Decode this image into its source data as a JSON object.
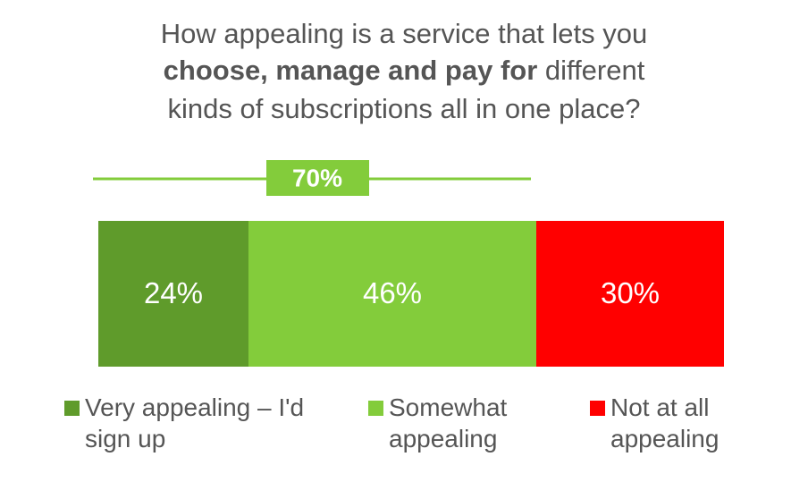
{
  "chart_data": {
    "type": "stacked_bar_horizontal",
    "title": [
      "How appealing is a service that lets you",
      "choose, manage and pay for",
      "different",
      "kinds of subscriptions all in one place?"
    ],
    "categories": [
      null
    ],
    "xlim": [
      0,
      100
    ],
    "bracket": {
      "value": 70,
      "label": "70%",
      "color": "#83cc3b"
    },
    "series": [
      {
        "name": "Very appealing – I'd sign up",
        "color": "#5f9b2b",
        "values": [
          24
        ],
        "value_labels": [
          "24%"
        ]
      },
      {
        "name": "Somewhat appealing",
        "color": "#83cc3b",
        "values": [
          46
        ],
        "value_labels": [
          "46%"
        ]
      },
      {
        "name": "Not at all appealing",
        "color": "#ff0000",
        "values": [
          30
        ],
        "value_labels": [
          "30%"
        ]
      }
    ]
  }
}
